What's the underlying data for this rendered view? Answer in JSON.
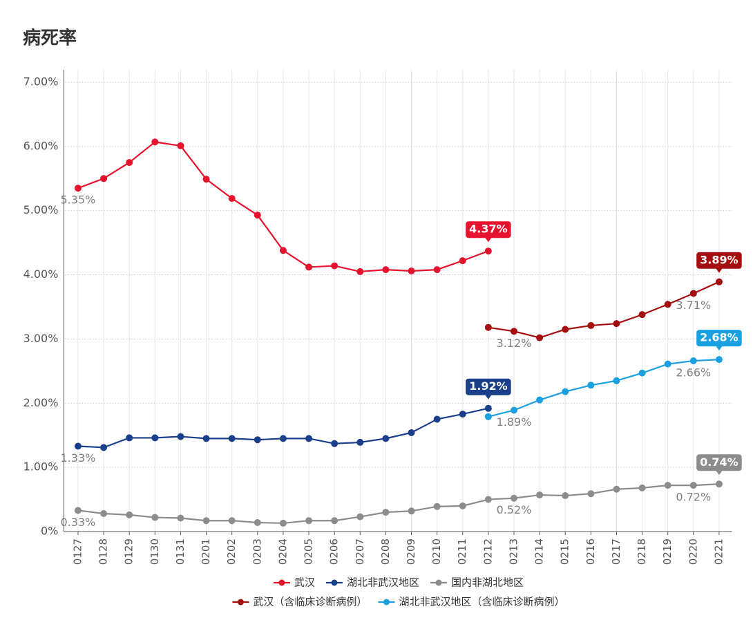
{
  "chart_data": {
    "type": "line",
    "title": "病死率",
    "categories": [
      "0127",
      "0128",
      "0129",
      "0130",
      "0131",
      "0201",
      "0202",
      "0203",
      "0204",
      "0205",
      "0206",
      "0207",
      "0208",
      "0209",
      "0210",
      "0211",
      "0212",
      "0213",
      "0214",
      "0215",
      "0216",
      "0217",
      "0218",
      "0219",
      "0220",
      "0221"
    ],
    "ylim": [
      0,
      7
    ],
    "yticks": [
      {
        "value": 0,
        "label": "0%"
      },
      {
        "value": 1,
        "label": "1.00%"
      },
      {
        "value": 2,
        "label": "2.00%"
      },
      {
        "value": 3,
        "label": "3.00%"
      },
      {
        "value": 4,
        "label": "4.00%"
      },
      {
        "value": 5,
        "label": "5.00%"
      },
      {
        "value": 6,
        "label": "6.00%"
      },
      {
        "value": 7,
        "label": "7.00%"
      }
    ],
    "grid": true,
    "legend": "bottom",
    "series": [
      {
        "name": "武汉",
        "color": "#e5132d",
        "values": [
          5.35,
          5.5,
          5.75,
          6.07,
          6.01,
          5.49,
          5.19,
          4.93,
          4.38,
          4.12,
          4.14,
          4.05,
          4.08,
          4.06,
          4.08,
          4.22,
          4.37,
          null,
          null,
          null,
          null,
          null,
          null,
          null,
          null,
          null
        ],
        "value_labels": [
          "5.35%",
          null,
          null,
          null,
          null,
          null,
          null,
          null,
          null,
          null,
          null,
          null,
          null,
          null,
          null,
          null,
          "4.37%",
          null,
          null,
          null,
          null,
          null,
          null,
          null,
          null,
          null
        ]
      },
      {
        "name": "湖北非武汉地区",
        "color": "#1a3f8a",
        "values": [
          1.33,
          1.31,
          1.46,
          1.46,
          1.48,
          1.45,
          1.45,
          1.43,
          1.45,
          1.45,
          1.37,
          1.39,
          1.45,
          1.54,
          1.75,
          1.83,
          1.92,
          null,
          null,
          null,
          null,
          null,
          null,
          null,
          null,
          null
        ],
        "value_labels": [
          "1.33%",
          null,
          null,
          null,
          null,
          null,
          null,
          null,
          null,
          null,
          null,
          null,
          null,
          null,
          null,
          null,
          "1.92%",
          null,
          null,
          null,
          null,
          null,
          null,
          null,
          null,
          null
        ]
      },
      {
        "name": "国内非湖北地区",
        "color": "#8c8c8c",
        "values": [
          0.33,
          0.28,
          0.26,
          0.22,
          0.21,
          0.17,
          0.17,
          0.14,
          0.13,
          0.17,
          0.17,
          0.23,
          0.3,
          0.32,
          0.39,
          0.4,
          0.5,
          0.52,
          0.57,
          0.56,
          0.59,
          0.66,
          0.68,
          0.72,
          0.72,
          0.74
        ],
        "value_labels": [
          "0.33%",
          null,
          null,
          null,
          null,
          null,
          null,
          null,
          null,
          null,
          null,
          null,
          null,
          null,
          null,
          null,
          null,
          "0.52%",
          null,
          null,
          null,
          null,
          null,
          null,
          "0.72%",
          "0.74%"
        ]
      },
      {
        "name": "武汉（含临床诊断病例）",
        "color": "#a50e0e",
        "values": [
          null,
          null,
          null,
          null,
          null,
          null,
          null,
          null,
          null,
          null,
          null,
          null,
          null,
          null,
          null,
          null,
          3.18,
          3.12,
          3.02,
          3.15,
          3.21,
          3.24,
          3.38,
          3.54,
          3.71,
          3.89
        ],
        "value_labels": [
          null,
          null,
          null,
          null,
          null,
          null,
          null,
          null,
          null,
          null,
          null,
          null,
          null,
          null,
          null,
          null,
          null,
          "3.12%",
          null,
          null,
          null,
          null,
          null,
          null,
          "3.71%",
          "3.89%"
        ]
      },
      {
        "name": "湖北非武汉地区（含临床诊断病例）",
        "color": "#1a9fe0",
        "values": [
          null,
          null,
          null,
          null,
          null,
          null,
          null,
          null,
          null,
          null,
          null,
          null,
          null,
          null,
          null,
          null,
          1.79,
          1.89,
          2.05,
          2.18,
          2.28,
          2.35,
          2.47,
          2.61,
          2.66,
          2.68
        ],
        "value_labels": [
          null,
          null,
          null,
          null,
          null,
          null,
          null,
          null,
          null,
          null,
          null,
          null,
          null,
          null,
          null,
          null,
          null,
          "1.89%",
          null,
          null,
          null,
          null,
          null,
          null,
          "2.66%",
          "2.68%"
        ]
      }
    ]
  }
}
